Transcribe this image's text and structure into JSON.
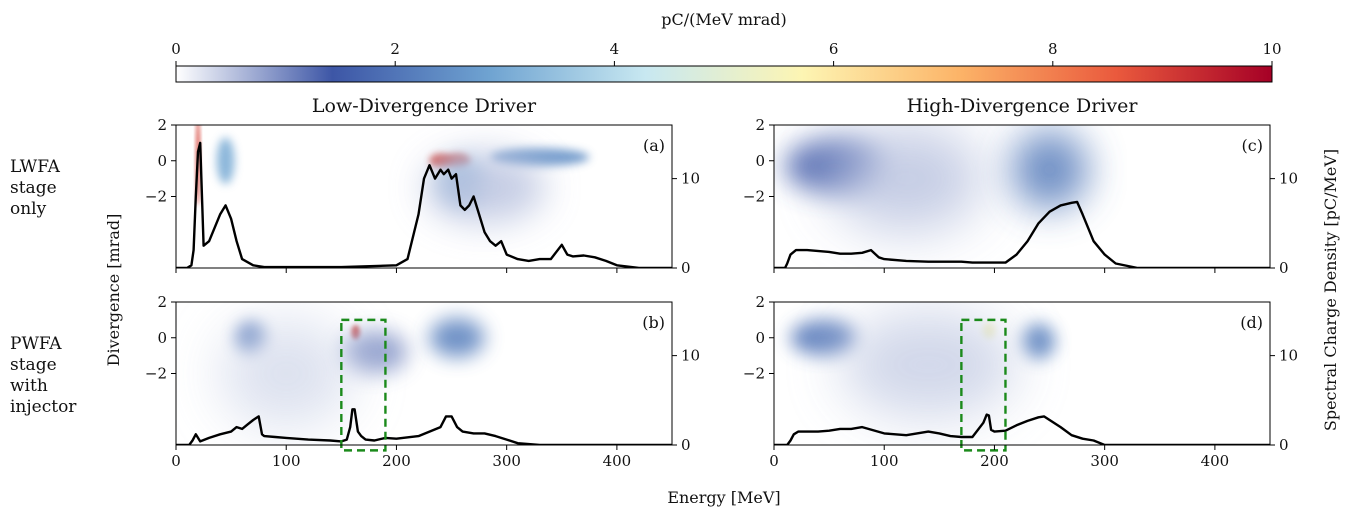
{
  "colorbar": {
    "label": "pC/(MeV mrad)",
    "ticks": [
      "0",
      "2",
      "4",
      "6",
      "8",
      "10"
    ],
    "range": [
      0,
      10
    ],
    "colormap": [
      "#ffffff",
      "#3d56a6",
      "#6fa3d1",
      "#c8e8f1",
      "#fdf5b3",
      "#fcb468",
      "#ea5a3d",
      "#a50026"
    ]
  },
  "column_titles": [
    "Low-Divergence Driver",
    "High-Divergence Driver"
  ],
  "row_labels": [
    {
      "lines": [
        "LWFA",
        "stage",
        "only"
      ]
    },
    {
      "lines": [
        "PWFA",
        "stage",
        "with",
        "injector"
      ]
    }
  ],
  "axes": {
    "xlabel": "Energy [MeV]",
    "ylabel_left": "Divergence [mrad]",
    "ylabel_left_color": "#e0201b",
    "ylabel_right": "Spectral Charge Density [pC/MeV]",
    "x_ticks": [
      "0",
      "100",
      "200",
      "300",
      "400"
    ],
    "y_left_ticks": [
      "2",
      "0",
      "−2"
    ],
    "y_right_ticks": [
      "0",
      "10"
    ],
    "xlim": [
      0,
      450
    ],
    "ylim_left": [
      -6,
      2
    ],
    "ylim_right": [
      0,
      16
    ]
  },
  "chart_data": [
    {
      "type": "heatmap",
      "panel": "(a)",
      "title": "Low-Divergence Driver",
      "row": "LWFA stage only",
      "line_series": {
        "x": [
          0,
          10,
          14,
          16,
          18,
          20,
          22,
          25,
          30,
          35,
          40,
          45,
          50,
          55,
          60,
          70,
          80,
          100,
          150,
          200,
          210,
          220,
          225,
          230,
          235,
          240,
          243,
          247,
          250,
          254,
          258,
          262,
          266,
          270,
          275,
          280,
          285,
          290,
          295,
          300,
          310,
          320,
          330,
          340,
          350,
          355,
          360,
          370,
          380,
          390,
          400,
          420,
          450
        ],
        "y": [
          0,
          0,
          0.3,
          2,
          8,
          13,
          14,
          2.5,
          3,
          4.5,
          6,
          7,
          5.5,
          3,
          1,
          0.3,
          0.1,
          0.1,
          0.1,
          0.3,
          1,
          6,
          10,
          11.5,
          10,
          11,
          10.5,
          11,
          10,
          10.5,
          7,
          6.5,
          7,
          8,
          6,
          4,
          3,
          2.5,
          3,
          1.5,
          1,
          0.8,
          1,
          1,
          2.6,
          1.5,
          1.3,
          1.4,
          1.2,
          0.8,
          0.3,
          0,
          0
        ]
      },
      "blobs": [
        {
          "energy": 20,
          "div": 0,
          "sigma_e": 2,
          "sigma_d": 2.5,
          "value": 9
        },
        {
          "energy": 45,
          "div": 0,
          "sigma_e": 8,
          "sigma_d": 1.3,
          "value": 3
        },
        {
          "energy": 240,
          "div": 0,
          "sigma_e": 10,
          "sigma_d": 0.4,
          "value": 9
        },
        {
          "energy": 255,
          "div": 0,
          "sigma_e": 12,
          "sigma_d": 0.4,
          "value": 9
        },
        {
          "energy": 260,
          "div": -1.2,
          "sigma_e": 20,
          "sigma_d": 1.2,
          "value": 3
        },
        {
          "energy": 330,
          "div": 0.2,
          "sigma_e": 45,
          "sigma_d": 0.5,
          "value": 2.5
        },
        {
          "energy": 280,
          "div": -1.5,
          "sigma_e": 55,
          "sigma_d": 2,
          "value": 0.5
        }
      ]
    },
    {
      "type": "heatmap",
      "panel": "(b)",
      "title": "",
      "row": "PWFA stage with injector",
      "line_series": {
        "x": [
          0,
          12,
          15,
          18,
          22,
          30,
          40,
          50,
          55,
          60,
          65,
          70,
          75,
          78,
          80,
          90,
          100,
          120,
          140,
          150,
          155,
          158,
          160,
          162,
          165,
          168,
          172,
          180,
          190,
          200,
          220,
          230,
          240,
          245,
          250,
          255,
          260,
          270,
          280,
          290,
          300,
          310,
          330,
          360,
          450
        ],
        "y": [
          0,
          0,
          0.5,
          1.2,
          0.4,
          0.8,
          1.2,
          1.5,
          2,
          1.8,
          2.3,
          2.8,
          3.2,
          1.2,
          1,
          0.9,
          0.8,
          0.6,
          0.5,
          0.4,
          0.6,
          2,
          4,
          4,
          1.5,
          1,
          0.6,
          0.5,
          0.8,
          0.7,
          1,
          1.5,
          2,
          3.2,
          3.2,
          2,
          1.5,
          1.3,
          1.3,
          1,
          0.6,
          0.2,
          0,
          0,
          0
        ]
      },
      "blobs": [
        {
          "energy": 68,
          "div": 0,
          "sigma_e": 14,
          "sigma_d": 0.9,
          "value": 2
        },
        {
          "energy": 163,
          "div": 0.3,
          "sigma_e": 4,
          "sigma_d": 0.4,
          "value": 9
        },
        {
          "energy": 255,
          "div": 0,
          "sigma_e": 25,
          "sigma_d": 1.1,
          "value": 2.2
        },
        {
          "energy": 180,
          "div": -0.8,
          "sigma_e": 30,
          "sigma_d": 1.2,
          "value": 0.9
        },
        {
          "energy": 100,
          "div": -2,
          "sigma_e": 60,
          "sigma_d": 3,
          "value": 0.3
        }
      ],
      "highlight_box": {
        "energy": [
          150,
          190
        ],
        "div": [
          -6.3,
          1
        ]
      }
    },
    {
      "type": "heatmap",
      "panel": "(c)",
      "title": "High-Divergence Driver",
      "row": "LWFA stage only",
      "line_series": {
        "x": [
          0,
          10,
          12,
          15,
          20,
          30,
          50,
          60,
          70,
          80,
          88,
          95,
          100,
          120,
          140,
          160,
          170,
          180,
          200,
          210,
          220,
          230,
          240,
          250,
          260,
          270,
          275,
          280,
          290,
          300,
          310,
          330,
          450
        ],
        "y": [
          0,
          0,
          0.5,
          1.5,
          2,
          2,
          1.8,
          1.6,
          1.6,
          1.7,
          2,
          1.2,
          1,
          0.8,
          0.7,
          0.7,
          0.7,
          0.6,
          0.6,
          0.6,
          1.5,
          3,
          5,
          6.3,
          7,
          7.3,
          7.4,
          6,
          3,
          1.5,
          0.5,
          0,
          0
        ]
      },
      "blobs": [
        {
          "energy": 55,
          "div": -0.3,
          "sigma_e": 45,
          "sigma_d": 1.5,
          "value": 1.5
        },
        {
          "energy": 250,
          "div": -0.5,
          "sigma_e": 35,
          "sigma_d": 2.2,
          "value": 2.1
        },
        {
          "energy": 120,
          "div": -1,
          "sigma_e": 70,
          "sigma_d": 3,
          "value": 0.5
        }
      ]
    },
    {
      "type": "heatmap",
      "panel": "(d)",
      "title": "",
      "row": "PWFA stage with injector",
      "line_series": {
        "x": [
          0,
          12,
          15,
          18,
          22,
          30,
          40,
          50,
          60,
          70,
          80,
          100,
          120,
          140,
          150,
          160,
          170,
          180,
          190,
          193,
          195,
          197,
          200,
          210,
          220,
          230,
          240,
          245,
          250,
          260,
          270,
          280,
          290,
          300,
          450
        ],
        "y": [
          0,
          0,
          0.5,
          1.2,
          1.5,
          1.5,
          1.5,
          1.6,
          1.8,
          1.8,
          2,
          1.3,
          1.1,
          1.5,
          1.3,
          1,
          0.9,
          0.9,
          2.5,
          3.4,
          3.3,
          1.7,
          1.5,
          1.6,
          2.2,
          2.7,
          3.1,
          3.2,
          2.8,
          2,
          1.1,
          0.7,
          0.5,
          0,
          0
        ]
      },
      "blobs": [
        {
          "energy": 45,
          "div": 0,
          "sigma_e": 30,
          "sigma_d": 1,
          "value": 2
        },
        {
          "energy": 195,
          "div": 0.4,
          "sigma_e": 6,
          "sigma_d": 0.45,
          "value": 5.5
        },
        {
          "energy": 240,
          "div": -0.2,
          "sigma_e": 15,
          "sigma_d": 1,
          "value": 2.2
        },
        {
          "energy": 140,
          "div": -1.5,
          "sigma_e": 80,
          "sigma_d": 3,
          "value": 0.4
        }
      ],
      "highlight_box": {
        "energy": [
          170,
          210
        ],
        "div": [
          -6.3,
          1
        ]
      }
    }
  ]
}
